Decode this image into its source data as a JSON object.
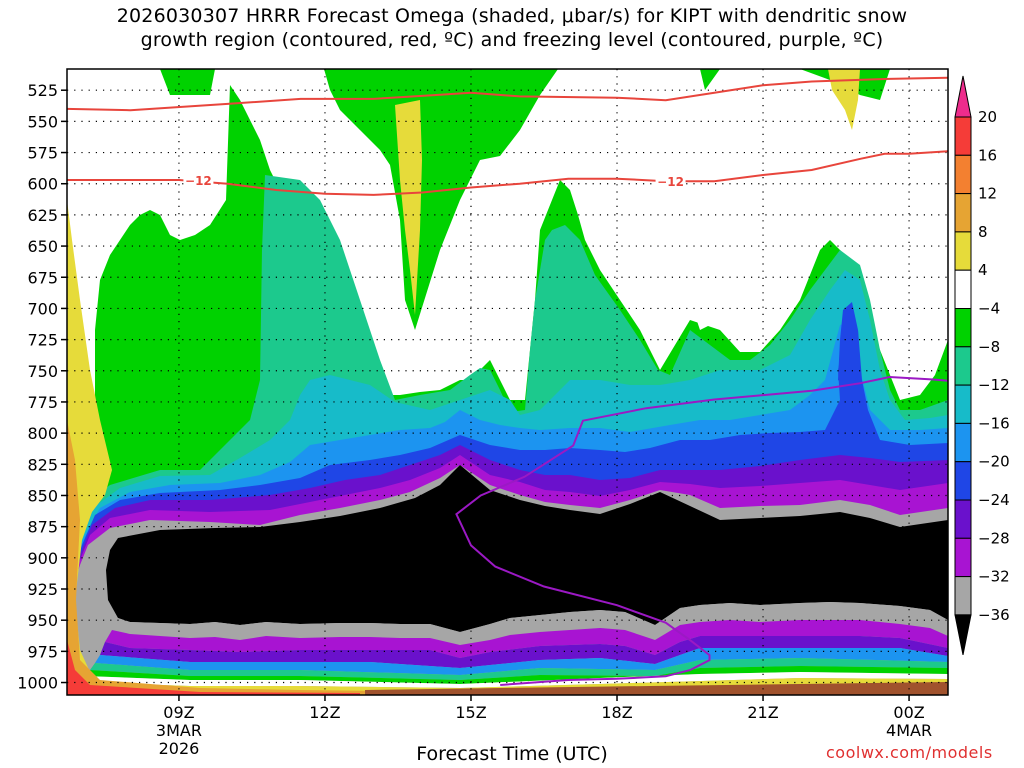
{
  "chart_data": {
    "type": "heatmap",
    "title_line1": "2026030307 HRRR Forecast Omega (shaded, μbar/s) for KIPT with dendritic snow",
    "title_line2": "growth region (contoured, red, ºC) and freezing level (contoured, purple, ºC)",
    "xlabel": "Forecast Time (UTC)",
    "credit": "coolwx.com/models",
    "x_range_hours": [
      6.7,
      24.8
    ],
    "y_range_hpa": [
      508,
      1010
    ],
    "y_ticks": [
      "525",
      "550",
      "575",
      "600",
      "625",
      "650",
      "675",
      "700",
      "725",
      "750",
      "775",
      "800",
      "825",
      "850",
      "875",
      "900",
      "925",
      "950",
      "975",
      "1000"
    ],
    "x_ticks": [
      {
        "hour": 9,
        "lines": [
          "09Z",
          "3MAR",
          "2026"
        ]
      },
      {
        "hour": 12,
        "lines": [
          "12Z"
        ]
      },
      {
        "hour": 15,
        "lines": [
          "15Z"
        ]
      },
      {
        "hour": 18,
        "lines": [
          "18Z"
        ]
      },
      {
        "hour": 21,
        "lines": [
          "21Z"
        ]
      },
      {
        "hour": 24,
        "lines": [
          "00Z",
          "4MAR"
        ]
      }
    ],
    "colorbar": {
      "labels": [
        "20",
        "16",
        "12",
        "8",
        "4",
        "−4",
        "−8",
        "−12",
        "−16",
        "−20",
        "−24",
        "−28",
        "−32",
        "−36"
      ],
      "colors": [
        "#ee2c8c",
        "#f53c38",
        "#f38030",
        "#e6a433",
        "#e6db3a",
        "#ffffff",
        "#00d200",
        "#1cc98d",
        "#17bbc9",
        "#1c94f0",
        "#1f46e6",
        "#6a11cc",
        "#a814d2",
        "#a6a6a6",
        "#000000"
      ]
    },
    "omega_fill": {
      "green": "#00d200",
      "teal": "#1cc98d",
      "cyan": "#17bbc9",
      "blue": "#1c94f0",
      "darkblue": "#1f46e6",
      "indigo": "#6a11cc",
      "purple": "#a814d2",
      "gray": "#a6a6a6",
      "black": "#000000",
      "yellow": "#e6db3a",
      "orange": "#e6a433",
      "red": "#f53c38",
      "brown": "#a0522d"
    },
    "contour_minus12_label": "−12",
    "dgz_upper_hpa": [
      [
        6.7,
        540
      ],
      [
        8,
        541
      ],
      [
        10,
        536
      ],
      [
        11.5,
        532
      ],
      [
        13,
        532
      ],
      [
        14.2,
        529
      ],
      [
        15,
        527
      ],
      [
        16,
        530
      ],
      [
        18,
        531
      ],
      [
        19,
        533
      ],
      [
        20,
        527
      ],
      [
        21,
        521
      ],
      [
        22,
        518
      ],
      [
        23.5,
        516
      ],
      [
        24.8,
        515
      ]
    ],
    "dgz_lower_hpa": [
      [
        6.7,
        597
      ],
      [
        8,
        597
      ],
      [
        9,
        597
      ],
      [
        10,
        600
      ],
      [
        11,
        605
      ],
      [
        12,
        608
      ],
      [
        13,
        609
      ],
      [
        14,
        607
      ],
      [
        15,
        603
      ],
      [
        16,
        600
      ],
      [
        17,
        596
      ],
      [
        18,
        596
      ],
      [
        19,
        598
      ],
      [
        20,
        598
      ],
      [
        21,
        593
      ],
      [
        22,
        589
      ],
      [
        23,
        580
      ],
      [
        23.5,
        576
      ],
      [
        24,
        576
      ],
      [
        24.8,
        574
      ]
    ],
    "freezing_level_hpa": [
      [
        15.6,
        1002
      ],
      [
        17,
        998
      ],
      [
        18,
        997
      ],
      [
        19,
        995
      ],
      [
        19.5,
        990
      ],
      [
        19.9,
        982
      ],
      [
        19.9,
        978
      ],
      [
        19.5,
        966
      ],
      [
        19,
        952
      ],
      [
        18,
        938
      ],
      [
        16.5,
        923
      ],
      [
        15.5,
        907
      ],
      [
        15,
        890
      ],
      [
        14.7,
        865
      ],
      [
        15.2,
        850
      ],
      [
        16.1,
        835
      ],
      [
        17.1,
        810
      ],
      [
        17.3,
        790
      ],
      [
        18.6,
        780
      ],
      [
        20,
        773
      ],
      [
        22,
        766
      ],
      [
        23,
        760
      ],
      [
        23.6,
        755
      ],
      [
        24.5,
        757
      ],
      [
        24.8,
        758
      ]
    ]
  }
}
